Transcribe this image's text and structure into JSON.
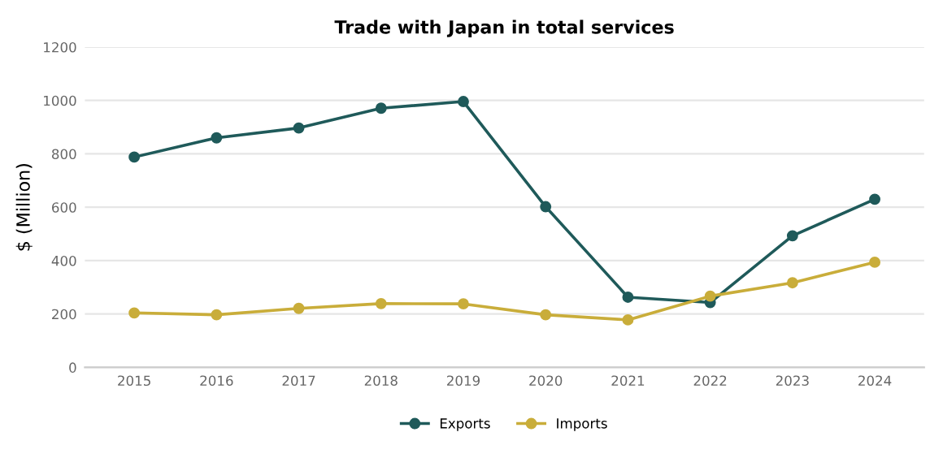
{
  "chart_data": {
    "type": "line",
    "title": "Trade with Japan in total services",
    "ylabel": "$ (Million)",
    "categories": [
      "2015",
      "2016",
      "2017",
      "2018",
      "2019",
      "2020",
      "2021",
      "2022",
      "2023",
      "2024"
    ],
    "series": [
      {
        "name": "Exports",
        "color": "#1f5a5a",
        "values": [
          788,
          860,
          897,
          971,
          996,
          602,
          263,
          243,
          493,
          630
        ]
      },
      {
        "name": "Imports",
        "color": "#c9ad3a",
        "values": [
          204,
          197,
          221,
          239,
          238,
          197,
          178,
          267,
          317,
          394
        ]
      }
    ],
    "ylim": [
      0,
      1200
    ],
    "yticks": [
      0,
      200,
      400,
      600,
      800,
      1000,
      1200
    ],
    "grid": "y",
    "legend": "bottom",
    "marker": "circle",
    "line_style": "solid"
  }
}
